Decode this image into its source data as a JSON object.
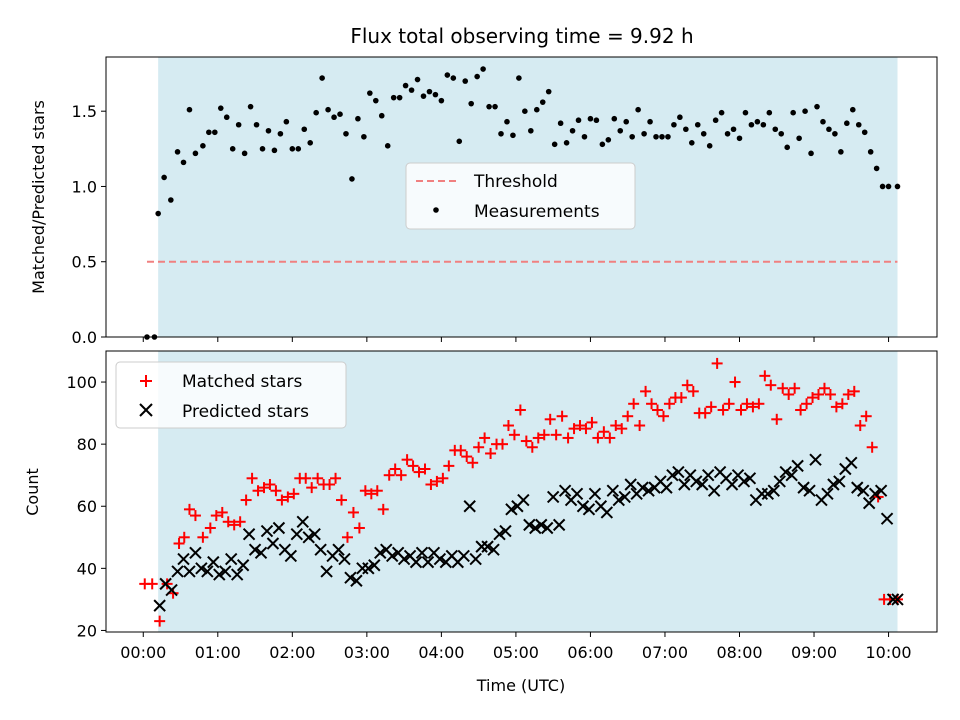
{
  "figure": {
    "title": "Flux total observing time = 9.92 h",
    "shade_color": "#add8e6"
  },
  "chart_data": [
    {
      "type": "scatter",
      "panel": "top",
      "ylabel": "Matched/Predicted stars",
      "xlim": [
        -0.5,
        10.65
      ],
      "ylim": [
        0,
        1.86
      ],
      "yticks": [
        0.0,
        0.5,
        1.0,
        1.5
      ],
      "ytick_labels": [
        "0.0",
        "0.5",
        "1.0",
        "1.5"
      ],
      "shaded_span": [
        0.2,
        10.12
      ],
      "legend": {
        "placement": "center",
        "entries": [
          {
            "label": "Threshold",
            "style": "dashed-line",
            "color": "#f08080"
          },
          {
            "label": "Measurements",
            "style": "dot",
            "color": "#000000"
          }
        ]
      },
      "threshold": {
        "name": "Threshold",
        "y": 0.5,
        "x_range": [
          0.05,
          10.12
        ],
        "color": "#f08080"
      },
      "series": [
        {
          "name": "Measurements",
          "color": "#000000",
          "marker": "dot",
          "x": [
            0.05,
            0.15,
            0.2,
            0.28,
            0.37,
            0.46,
            0.54,
            0.62,
            0.7,
            0.8,
            0.88,
            0.96,
            1.04,
            1.12,
            1.2,
            1.28,
            1.36,
            1.44,
            1.52,
            1.6,
            1.68,
            1.76,
            1.84,
            1.92,
            2.0,
            2.08,
            2.16,
            2.24,
            2.32,
            2.4,
            2.48,
            2.56,
            2.64,
            2.72,
            2.8,
            2.88,
            2.96,
            3.04,
            3.12,
            3.2,
            3.28,
            3.36,
            3.44,
            3.52,
            3.6,
            3.68,
            3.76,
            3.84,
            3.92,
            4.0,
            4.08,
            4.16,
            4.24,
            4.32,
            4.4,
            4.48,
            4.56,
            4.64,
            4.72,
            4.8,
            4.88,
            4.96,
            5.04,
            5.12,
            5.2,
            5.28,
            5.36,
            5.44,
            5.52,
            5.6,
            5.68,
            5.76,
            5.84,
            5.92,
            6.0,
            6.08,
            6.16,
            6.24,
            6.32,
            6.4,
            6.48,
            6.56,
            6.64,
            6.72,
            6.8,
            6.88,
            6.96,
            7.04,
            7.12,
            7.2,
            7.28,
            7.36,
            7.44,
            7.52,
            7.6,
            7.68,
            7.76,
            7.84,
            7.92,
            8.0,
            8.08,
            8.16,
            8.24,
            8.32,
            8.4,
            8.48,
            8.56,
            8.64,
            8.72,
            8.8,
            8.88,
            8.96,
            9.04,
            9.12,
            9.2,
            9.28,
            9.36,
            9.44,
            9.52,
            9.6,
            9.68,
            9.76,
            9.84,
            9.92,
            10.0,
            10.12
          ],
          "y": [
            0.0,
            0.0,
            0.82,
            1.06,
            0.91,
            1.23,
            1.16,
            1.51,
            1.22,
            1.27,
            1.36,
            1.36,
            1.52,
            1.46,
            1.25,
            1.41,
            1.22,
            1.53,
            1.41,
            1.25,
            1.37,
            1.24,
            1.35,
            1.43,
            1.25,
            1.25,
            1.38,
            1.29,
            1.49,
            1.72,
            1.51,
            1.46,
            1.48,
            1.35,
            1.05,
            1.45,
            1.33,
            1.62,
            1.57,
            1.47,
            1.27,
            1.59,
            1.59,
            1.67,
            1.64,
            1.71,
            1.6,
            1.63,
            1.61,
            1.57,
            1.74,
            1.72,
            1.3,
            1.7,
            1.55,
            1.73,
            1.78,
            1.53,
            1.53,
            1.35,
            1.43,
            1.34,
            1.72,
            1.5,
            1.37,
            1.51,
            1.56,
            1.63,
            1.28,
            1.42,
            1.29,
            1.37,
            1.44,
            1.33,
            1.45,
            1.44,
            1.28,
            1.31,
            1.45,
            1.37,
            1.43,
            1.33,
            1.51,
            1.35,
            1.43,
            1.33,
            1.33,
            1.33,
            1.41,
            1.46,
            1.38,
            1.29,
            1.41,
            1.35,
            1.27,
            1.44,
            1.49,
            1.35,
            1.38,
            1.32,
            1.49,
            1.41,
            1.43,
            1.41,
            1.49,
            1.38,
            1.35,
            1.26,
            1.49,
            1.32,
            1.5,
            1.22,
            1.53,
            1.43,
            1.38,
            1.35,
            1.23,
            1.42,
            1.51,
            1.41,
            1.36,
            1.23,
            1.12,
            1.0,
            1.0,
            1.0
          ]
        }
      ]
    },
    {
      "type": "scatter",
      "panel": "bottom",
      "xlabel": "Time (UTC)",
      "ylabel": "Count",
      "xlim": [
        -0.5,
        10.65
      ],
      "ylim": [
        19.5,
        110
      ],
      "xticks": [
        0,
        1,
        2,
        3,
        4,
        5,
        6,
        7,
        8,
        9,
        10
      ],
      "xtick_labels": [
        "00:00",
        "01:00",
        "02:00",
        "03:00",
        "04:00",
        "05:00",
        "06:00",
        "07:00",
        "08:00",
        "09:00",
        "10:00"
      ],
      "yticks": [
        20,
        40,
        60,
        80,
        100
      ],
      "ytick_labels": [
        "20",
        "40",
        "60",
        "80",
        "100"
      ],
      "shaded_span": [
        0.2,
        10.12
      ],
      "legend": {
        "placement": "top-left",
        "entries": [
          {
            "label": "Matched stars",
            "style": "plus",
            "color": "#ff0000"
          },
          {
            "label": "Predicted stars",
            "style": "x",
            "color": "#000000"
          }
        ]
      },
      "series": [
        {
          "name": "Matched stars",
          "color": "#ff0000",
          "marker": "plus",
          "x": [
            0.02,
            0.12,
            0.22,
            0.32,
            0.4,
            0.48,
            0.55,
            0.62,
            0.7,
            0.8,
            0.9,
            0.98,
            1.06,
            1.14,
            1.22,
            1.3,
            1.38,
            1.46,
            1.54,
            1.62,
            1.7,
            1.78,
            1.86,
            1.94,
            2.02,
            2.1,
            2.18,
            2.26,
            2.34,
            2.42,
            2.5,
            2.58,
            2.66,
            2.74,
            2.82,
            2.9,
            2.98,
            3.06,
            3.14,
            3.22,
            3.3,
            3.38,
            3.46,
            3.54,
            3.62,
            3.7,
            3.78,
            3.86,
            3.94,
            4.02,
            4.1,
            4.18,
            4.26,
            4.34,
            4.42,
            4.5,
            4.58,
            4.66,
            4.74,
            4.82,
            4.9,
            4.98,
            5.06,
            5.14,
            5.22,
            5.3,
            5.38,
            5.46,
            5.54,
            5.62,
            5.7,
            5.78,
            5.86,
            5.94,
            6.02,
            6.1,
            6.18,
            6.26,
            6.34,
            6.42,
            6.5,
            6.58,
            6.66,
            6.74,
            6.82,
            6.9,
            6.98,
            7.06,
            7.14,
            7.22,
            7.3,
            7.38,
            7.46,
            7.54,
            7.62,
            7.7,
            7.78,
            7.86,
            7.94,
            8.02,
            8.1,
            8.18,
            8.26,
            8.34,
            8.42,
            8.5,
            8.58,
            8.66,
            8.74,
            8.82,
            8.9,
            8.98,
            9.06,
            9.14,
            9.22,
            9.3,
            9.38,
            9.46,
            9.54,
            9.62,
            9.7,
            9.78,
            9.86,
            9.94,
            10.02,
            10.12
          ],
          "y": [
            35,
            35,
            23,
            35,
            32,
            48,
            50,
            59,
            57,
            50,
            53,
            57,
            58,
            55,
            54,
            55,
            62,
            69,
            65,
            66,
            67,
            65,
            62,
            63,
            64,
            69,
            69,
            66,
            69,
            67,
            67,
            69,
            62,
            50,
            58,
            53,
            65,
            64,
            65,
            59,
            70,
            72,
            70,
            75,
            73,
            71,
            72,
            67,
            68,
            69,
            73,
            78,
            78,
            76,
            74,
            79,
            82,
            77,
            80,
            80,
            86,
            83,
            91,
            81,
            79,
            82,
            83,
            88,
            83,
            89,
            82,
            85,
            86,
            85,
            87,
            82,
            84,
            82,
            86,
            85,
            89,
            93,
            86,
            97,
            93,
            91,
            89,
            93,
            95,
            95,
            99,
            97,
            90,
            90,
            92,
            106,
            91,
            93,
            100,
            91,
            93,
            92,
            93,
            102,
            99,
            88,
            98,
            96,
            98,
            91,
            93,
            95,
            96,
            98,
            96,
            92,
            93,
            96,
            97,
            86,
            89,
            79,
            63,
            30,
            30,
            30
          ],
          "note_markers": []
        },
        {
          "name": "Predicted stars",
          "color": "#000000",
          "marker": "x",
          "x": [
            0.22,
            0.3,
            0.38,
            0.46,
            0.54,
            0.62,
            0.7,
            0.78,
            0.86,
            0.94,
            1.02,
            1.1,
            1.18,
            1.26,
            1.34,
            1.42,
            1.5,
            1.58,
            1.66,
            1.74,
            1.82,
            1.9,
            1.98,
            2.06,
            2.14,
            2.22,
            2.3,
            2.38,
            2.46,
            2.54,
            2.62,
            2.7,
            2.78,
            2.86,
            2.94,
            3.02,
            3.1,
            3.18,
            3.26,
            3.34,
            3.42,
            3.5,
            3.58,
            3.66,
            3.74,
            3.82,
            3.9,
            3.98,
            4.06,
            4.14,
            4.22,
            4.3,
            4.38,
            4.46,
            4.54,
            4.62,
            4.7,
            4.78,
            4.86,
            4.94,
            5.02,
            5.1,
            5.18,
            5.26,
            5.34,
            5.42,
            5.5,
            5.58,
            5.66,
            5.74,
            5.82,
            5.9,
            5.98,
            6.06,
            6.14,
            6.22,
            6.3,
            6.38,
            6.46,
            6.54,
            6.62,
            6.7,
            6.78,
            6.86,
            6.94,
            7.02,
            7.1,
            7.18,
            7.26,
            7.34,
            7.42,
            7.5,
            7.58,
            7.66,
            7.74,
            7.82,
            7.9,
            7.98,
            8.06,
            8.14,
            8.22,
            8.3,
            8.38,
            8.46,
            8.54,
            8.62,
            8.7,
            8.78,
            8.86,
            8.94,
            9.02,
            9.1,
            9.18,
            9.26,
            9.34,
            9.42,
            9.5,
            9.58,
            9.66,
            9.74,
            9.82,
            9.9,
            9.98,
            10.06,
            10.12
          ],
          "y": [
            28,
            35,
            33,
            39,
            43,
            39,
            45,
            40,
            39,
            42,
            38,
            39,
            43,
            38,
            41,
            51,
            46,
            45,
            52,
            48,
            53,
            46,
            44,
            51,
            55,
            50,
            51,
            46,
            39,
            44,
            46,
            43,
            37,
            36,
            40,
            40,
            41,
            45,
            46,
            44,
            45,
            43,
            44,
            42,
            45,
            42,
            45,
            43,
            42,
            44,
            42,
            44,
            60,
            43,
            47,
            47,
            46,
            51,
            52,
            59,
            60,
            62,
            54,
            53,
            54,
            53,
            63,
            54,
            65,
            62,
            64,
            60,
            59,
            64,
            60,
            58,
            65,
            62,
            63,
            67,
            64,
            66,
            65,
            66,
            68,
            66,
            70,
            71,
            67,
            70,
            68,
            67,
            70,
            65,
            71,
            69,
            67,
            70,
            68,
            69,
            62,
            64,
            64,
            65,
            68,
            71,
            70,
            73,
            66,
            65,
            75,
            62,
            64,
            67,
            68,
            72,
            74,
            66,
            65,
            61,
            64,
            65,
            56,
            30,
            30
          ]
        }
      ]
    }
  ]
}
